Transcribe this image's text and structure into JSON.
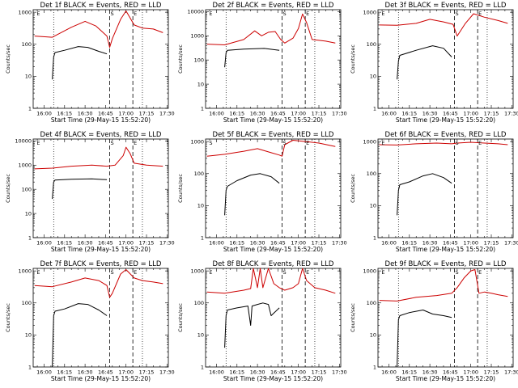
{
  "figure": {
    "background": "#ffffff",
    "panel_titles": [
      "Det 1f BLACK = Events, RED = LLD",
      "Det 2f BLACK = Events, RED = LLD",
      "Det 3f BLACK = Events, RED = LLD",
      "Det 4f BLACK = Events, RED = LLD",
      "Det 5f BLACK = Events, RED = LLD",
      "Det 6f BLACK = Events, RED = LLD",
      "Det 7f BLACK = Events, RED = LLD",
      "Det 8f BLACK = Events, RED = LLD",
      "Det 9f BLACK = Events, RED = LLD"
    ]
  },
  "chart_data": [
    {
      "type": "line",
      "detector": "Det 1f",
      "title": "Det 1f BLACK = Events, RED = LLD",
      "xlabel": "Start Time (29-May-15 15:52:20)",
      "ylabel": "Counts/sec",
      "x_ticks": [
        "16:00",
        "16:15",
        "16:30",
        "16:45",
        "17:00",
        "17:15",
        "17:30"
      ],
      "y_ticks": [
        "1",
        "10",
        "100",
        "1000"
      ],
      "ylim": [
        1,
        1200
      ],
      "yscale": "log",
      "markers": [
        {
          "time": "15:54",
          "label": "E"
        },
        {
          "time": "16:48",
          "label": "S"
        },
        {
          "time": "17:05",
          "label": "E"
        }
      ],
      "dotted_lines": [
        "16:07",
        "17:12"
      ],
      "series": [
        {
          "color": "#cc0000",
          "x": [
            "15:53",
            "16:06",
            "16:20",
            "16:30",
            "16:38",
            "16:46",
            "16:48",
            "16:50",
            "16:56",
            "17:00",
            "17:06",
            "17:12",
            "17:20",
            "17:27"
          ],
          "y": [
            180,
            165,
            340,
            520,
            370,
            180,
            80,
            150,
            600,
            1100,
            400,
            320,
            300,
            230
          ]
        },
        {
          "color": "#000000",
          "x": [
            "16:06",
            "16:07",
            "16:08",
            "16:15",
            "16:25",
            "16:32",
            "16:40",
            "16:46"
          ],
          "y": [
            8,
            40,
            55,
            65,
            85,
            80,
            60,
            50
          ]
        }
      ]
    },
    {
      "type": "line",
      "detector": "Det 2f",
      "title": "Det 2f BLACK = Events, RED = LLD",
      "xlabel": "Start Time (29-May-15 15:52:20)",
      "ylabel": "Counts/sec",
      "x_ticks": [
        "16:00",
        "16:15",
        "16:30",
        "16:45",
        "17:00",
        "17:15",
        "17:30"
      ],
      "y_ticks": [
        "1",
        "10",
        "100",
        "1000",
        "10000"
      ],
      "ylim": [
        1,
        12000
      ],
      "yscale": "log",
      "markers": [
        {
          "time": "15:54",
          "label": "E"
        },
        {
          "time": "16:48",
          "label": "S"
        },
        {
          "time": "17:05",
          "label": "E"
        }
      ],
      "dotted_lines": [
        "16:07",
        "17:12"
      ],
      "series": [
        {
          "color": "#cc0000",
          "x": [
            "15:53",
            "16:06",
            "16:20",
            "16:28",
            "16:33",
            "16:38",
            "16:43",
            "16:47",
            "16:50",
            "16:56",
            "17:00",
            "17:03",
            "17:06",
            "17:10",
            "17:20",
            "17:27"
          ],
          "y": [
            450,
            420,
            700,
            1600,
            1000,
            1400,
            1500,
            700,
            500,
            800,
            2000,
            8000,
            3500,
            700,
            600,
            500
          ]
        },
        {
          "color": "#000000",
          "x": [
            "16:06",
            "16:07",
            "16:08",
            "16:20",
            "16:35",
            "16:46"
          ],
          "y": [
            50,
            200,
            250,
            280,
            300,
            250
          ]
        }
      ]
    },
    {
      "type": "line",
      "detector": "Det 3f",
      "title": "Det 3f BLACK = Events, RED = LLD",
      "xlabel": "Start Time (29-May-15 15:52:20)",
      "ylabel": "Counts/sec",
      "x_ticks": [
        "16:00",
        "16:15",
        "16:30",
        "16:45",
        "17:00",
        "17:15",
        "17:30"
      ],
      "y_ticks": [
        "1",
        "10",
        "100",
        "1000"
      ],
      "ylim": [
        1,
        1200
      ],
      "yscale": "log",
      "markers": [
        {
          "time": "15:54",
          "label": "E"
        },
        {
          "time": "16:48",
          "label": "S"
        },
        {
          "time": "17:05",
          "label": "E"
        }
      ],
      "dotted_lines": [
        "16:07",
        "17:12"
      ],
      "series": [
        {
          "color": "#cc0000",
          "x": [
            "15:53",
            "16:06",
            "16:20",
            "16:30",
            "16:40",
            "16:47",
            "16:50",
            "16:56",
            "17:02",
            "17:10",
            "17:20",
            "17:27"
          ],
          "y": [
            400,
            390,
            450,
            600,
            500,
            420,
            180,
            450,
            900,
            700,
            550,
            450
          ]
        },
        {
          "color": "#000000",
          "x": [
            "16:06",
            "16:07",
            "16:08",
            "16:20",
            "16:32",
            "16:40",
            "16:46"
          ],
          "y": [
            8,
            30,
            45,
            65,
            90,
            75,
            40
          ]
        }
      ]
    },
    {
      "type": "line",
      "detector": "Det 4f",
      "title": "Det 4f BLACK = Events, RED = LLD",
      "xlabel": "Start Time (29-May-15 15:52:20)",
      "ylabel": "Counts/sec",
      "x_ticks": [
        "16:00",
        "16:15",
        "16:30",
        "16:45",
        "17:00",
        "17:15",
        "17:30"
      ],
      "y_ticks": [
        "1",
        "10",
        "100",
        "1000",
        "10000"
      ],
      "ylim": [
        1,
        12000
      ],
      "yscale": "log",
      "markers": [
        {
          "time": "15:54",
          "label": "E"
        },
        {
          "time": "16:48",
          "label": "S"
        },
        {
          "time": "17:05",
          "label": "E"
        }
      ],
      "dotted_lines": [
        "16:07",
        "17:12"
      ],
      "series": [
        {
          "color": "#cc0000",
          "x": [
            "15:53",
            "16:06",
            "16:20",
            "16:35",
            "16:46",
            "16:52",
            "16:58",
            "17:00",
            "17:03",
            "17:06",
            "17:15",
            "17:27"
          ],
          "y": [
            700,
            750,
            900,
            1000,
            900,
            1000,
            2500,
            5500,
            3000,
            1200,
            1000,
            900
          ]
        },
        {
          "color": "#000000",
          "x": [
            "16:06",
            "16:07",
            "16:08",
            "16:20",
            "16:35",
            "16:46"
          ],
          "y": [
            40,
            200,
            240,
            260,
            270,
            250
          ]
        }
      ]
    },
    {
      "type": "line",
      "detector": "Det 5f",
      "title": "Det 5f BLACK = Events, RED = LLD",
      "xlabel": "Start Time (29-May-15 15:52:20)",
      "ylabel": "Counts/sec",
      "x_ticks": [
        "16:00",
        "16:15",
        "16:30",
        "16:45",
        "17:00",
        "17:15",
        "17:30"
      ],
      "y_ticks": [
        "1",
        "10",
        "100",
        "1000"
      ],
      "ylim": [
        1,
        1200
      ],
      "yscale": "log",
      "markers": [
        {
          "time": "15:54",
          "label": "S"
        },
        {
          "time": "16:48",
          "label": "S"
        },
        {
          "time": "17:05",
          "label": "E"
        }
      ],
      "dotted_lines": [
        "16:07",
        "17:12"
      ],
      "series": [
        {
          "color": "#cc0000",
          "x": [
            "15:53",
            "16:06",
            "16:20",
            "16:30",
            "16:40",
            "16:46",
            "16:48",
            "16:50",
            "16:56",
            "17:05",
            "17:15",
            "17:27"
          ],
          "y": [
            350,
            400,
            500,
            600,
            450,
            380,
            350,
            800,
            1100,
            1000,
            900,
            700
          ]
        },
        {
          "color": "#000000",
          "x": [
            "16:06",
            "16:07",
            "16:08",
            "16:15",
            "16:25",
            "16:32",
            "16:40",
            "16:46"
          ],
          "y": [
            5,
            30,
            40,
            60,
            90,
            100,
            80,
            50
          ]
        }
      ]
    },
    {
      "type": "line",
      "detector": "Det 6f",
      "title": "Det 6f BLACK = Events, RED = LLD",
      "xlabel": "Start Time (29-May-15 15:52:20)",
      "ylabel": "Counts/sec",
      "x_ticks": [
        "16:00",
        "16:15",
        "16:30",
        "16:45",
        "17:00",
        "17:15",
        "17:30"
      ],
      "y_ticks": [
        "1",
        "10",
        "100",
        "1000"
      ],
      "ylim": [
        1,
        1200
      ],
      "yscale": "log",
      "markers": [
        {
          "time": "15:54",
          "label": "E"
        },
        {
          "time": "16:48",
          "label": "S"
        },
        {
          "time": "17:05",
          "label": "E"
        }
      ],
      "dotted_lines": [
        "16:07",
        "17:12"
      ],
      "series": [
        {
          "color": "#cc0000",
          "x": [
            "15:53",
            "16:06",
            "16:20",
            "16:35",
            "16:46",
            "16:50",
            "17:00",
            "17:10",
            "17:20",
            "17:27"
          ],
          "y": [
            800,
            780,
            850,
            900,
            850,
            900,
            950,
            900,
            850,
            800
          ]
        },
        {
          "color": "#000000",
          "x": [
            "16:06",
            "16:07",
            "16:08",
            "16:15",
            "16:25",
            "16:32",
            "16:40",
            "16:46"
          ],
          "y": [
            5,
            30,
            45,
            55,
            85,
            100,
            75,
            50
          ]
        }
      ]
    },
    {
      "type": "line",
      "detector": "Det 7f",
      "title": "Det 7f BLACK = Events, RED = LLD",
      "xlabel": "Start Time (29-May-15 15:52:20)",
      "ylabel": "Counts/sec",
      "x_ticks": [
        "16:00",
        "16:15",
        "16:30",
        "16:45",
        "17:00",
        "17:15",
        "17:30"
      ],
      "y_ticks": [
        "1",
        "10",
        "100",
        "1000"
      ],
      "ylim": [
        1,
        1200
      ],
      "yscale": "log",
      "markers": [
        {
          "time": "15:54",
          "label": "E"
        },
        {
          "time": "16:48",
          "label": "S"
        },
        {
          "time": "17:05",
          "label": "E"
        }
      ],
      "dotted_lines": [
        "16:07",
        "17:12"
      ],
      "series": [
        {
          "color": "#cc0000",
          "x": [
            "15:53",
            "16:06",
            "16:20",
            "16:30",
            "16:40",
            "16:46",
            "16:48",
            "16:50",
            "16:56",
            "17:00",
            "17:06",
            "17:12",
            "17:20",
            "17:27"
          ],
          "y": [
            350,
            320,
            450,
            600,
            500,
            350,
            150,
            200,
            800,
            1100,
            600,
            500,
            450,
            400
          ]
        },
        {
          "color": "#000000",
          "x": [
            "16:06",
            "16:07",
            "16:08",
            "16:15",
            "16:25",
            "16:32",
            "16:40",
            "16:46"
          ],
          "y": [
            1,
            40,
            55,
            65,
            95,
            90,
            60,
            40
          ]
        }
      ]
    },
    {
      "type": "line",
      "detector": "Det 8f",
      "title": "Det 8f BLACK = Events, RED = LLD",
      "xlabel": "Start Time (29-May-15 15:52:20)",
      "ylabel": "Counts/sec",
      "x_ticks": [
        "16:00",
        "16:15",
        "16:30",
        "16:45",
        "17:00",
        "17:15",
        "17:30"
      ],
      "y_ticks": [
        "1",
        "10",
        "100",
        "1000"
      ],
      "ylim": [
        1,
        1200
      ],
      "yscale": "log",
      "markers": [
        {
          "time": "15:54",
          "label": "E"
        },
        {
          "time": "16:48",
          "label": "S"
        },
        {
          "time": "17:05",
          "label": "E"
        }
      ],
      "dotted_lines": [
        "16:07",
        "17:12"
      ],
      "series": [
        {
          "color": "#cc0000",
          "x": [
            "15:53",
            "16:06",
            "16:20",
            "16:25",
            "16:27",
            "16:30",
            "16:32",
            "16:34",
            "16:38",
            "16:42",
            "16:46",
            "16:50",
            "16:56",
            "17:00",
            "17:03",
            "17:06",
            "17:12",
            "17:20",
            "17:27"
          ],
          "y": [
            220,
            200,
            250,
            280,
            1200,
            300,
            1200,
            300,
            1200,
            400,
            300,
            250,
            300,
            400,
            1200,
            500,
            300,
            250,
            200
          ]
        },
        {
          "color": "#000000",
          "x": [
            "16:06",
            "16:07",
            "16:08",
            "16:15",
            "16:23",
            "16:25",
            "16:26",
            "16:30",
            "16:34",
            "16:38",
            "16:40",
            "16:46"
          ],
          "y": [
            4,
            40,
            60,
            70,
            80,
            20,
            80,
            90,
            100,
            90,
            40,
            70
          ]
        }
      ]
    },
    {
      "type": "line",
      "detector": "Det 9f",
      "title": "Det 9f BLACK = Events, RED = LLD",
      "xlabel": "Start Time (29-May-15 15:52:20)",
      "ylabel": "Counts/sec",
      "x_ticks": [
        "16:00",
        "16:15",
        "16:30",
        "16:45",
        "17:00",
        "17:15",
        "17:30"
      ],
      "y_ticks": [
        "1",
        "10",
        "100",
        "1000"
      ],
      "ylim": [
        1,
        1200
      ],
      "yscale": "log",
      "markers": [
        {
          "time": "15:54",
          "label": "E"
        },
        {
          "time": "16:48",
          "label": "S"
        },
        {
          "time": "17:05",
          "label": "E"
        }
      ],
      "dotted_lines": [
        "16:07",
        "17:12"
      ],
      "series": [
        {
          "color": "#cc0000",
          "x": [
            "15:53",
            "16:06",
            "16:20",
            "16:35",
            "16:46",
            "16:50",
            "16:55",
            "17:00",
            "17:03",
            "17:06",
            "17:10",
            "17:15",
            "17:20",
            "17:27"
          ],
          "y": [
            120,
            115,
            150,
            170,
            200,
            300,
            600,
            1000,
            1100,
            200,
            220,
            200,
            180,
            160
          ]
        },
        {
          "color": "#000000",
          "x": [
            "16:06",
            "16:07",
            "16:08",
            "16:15",
            "16:25",
            "16:32",
            "16:40",
            "16:46"
          ],
          "y": [
            1,
            30,
            40,
            50,
            60,
            45,
            40,
            35
          ]
        }
      ]
    }
  ]
}
